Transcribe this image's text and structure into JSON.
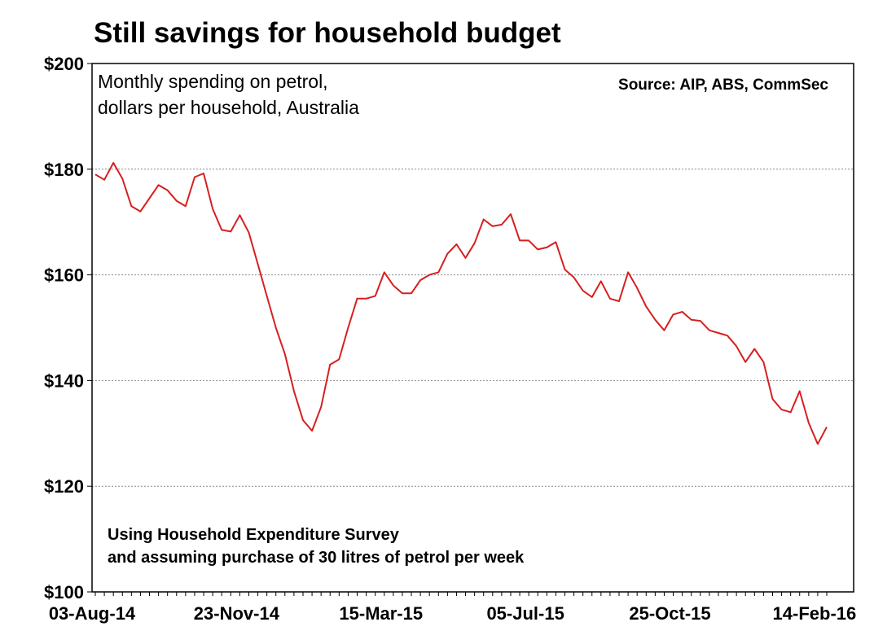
{
  "chart_data": {
    "type": "line",
    "title": "Still savings for household budget",
    "subtitle_lines": [
      "Monthly spending on petrol,",
      "dollars per household, Australia"
    ],
    "source": "Source: AIP, ABS, CommSec",
    "note_lines": [
      "Using Household Expenditure Survey",
      "and assuming purchase of 30 litres of petrol per week"
    ],
    "ylim": [
      100,
      200
    ],
    "y_ticks": [
      100,
      120,
      140,
      160,
      180,
      200
    ],
    "y_tick_labels": [
      "$100",
      "$120",
      "$140",
      "$160",
      "$180",
      "$200"
    ],
    "x_tick_labels": [
      "03-Aug-14",
      "23-Nov-14",
      "15-Mar-15",
      "05-Jul-15",
      "25-Oct-15",
      "14-Feb-16"
    ],
    "x_tick_index": [
      0,
      16,
      32,
      48,
      64,
      80
    ],
    "line_color": "#d62020",
    "series": [
      {
        "name": "Monthly spending on petrol",
        "values": [
          179,
          178,
          181.2,
          178.2,
          173,
          172,
          174.5,
          177,
          176,
          174,
          173,
          178.5,
          179.2,
          172.5,
          168.5,
          168.2,
          171.3,
          168,
          162,
          156,
          150,
          145,
          138,
          132.5,
          130.5,
          135,
          143,
          144,
          150,
          155.5,
          155.5,
          156,
          160.5,
          158,
          156.5,
          156.5,
          159,
          160,
          160.5,
          164,
          165.8,
          163.2,
          166,
          170.5,
          169.2,
          169.5,
          171.5,
          166.5,
          166.5,
          164.8,
          165.2,
          166.2,
          161,
          159.5,
          157,
          155.8,
          158.8,
          155.5,
          155,
          160.5,
          157.5,
          154,
          151.5,
          149.5,
          152.5,
          153,
          151.5,
          151.3,
          149.5,
          149,
          148.5,
          146.5,
          143.5,
          146,
          143.5,
          136.5,
          134.5,
          134,
          138,
          132,
          128,
          131.2
        ]
      }
    ]
  }
}
